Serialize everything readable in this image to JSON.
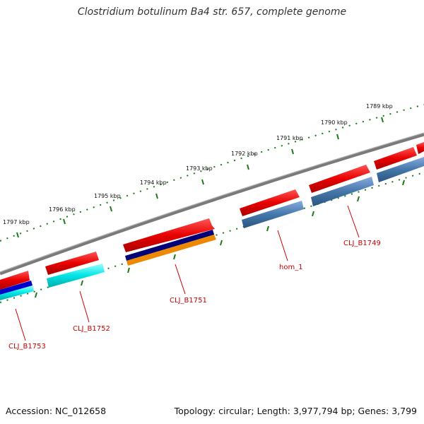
{
  "title": "Clostridium botulinum Ba4 str. 657, complete genome",
  "accession": "Accession: NC_012658",
  "topology": "Topology: circular; Length: 3,977,794 bp; Genes: 3,799",
  "colors": {
    "backbone": "#7a7a7a",
    "ticks": "#1a7a1a",
    "gene_red": "#e80000",
    "gene_cyan": "#00e5e5",
    "gene_blue": "#4477aa",
    "gene_navy": "#000077",
    "gene_orange": "#ee8800",
    "gene_darkblue": "#0000cc",
    "label_red": "#cc0000"
  },
  "scale_ticks": [
    {
      "label": "1797 kbp"
    },
    {
      "label": "1796 kbp"
    },
    {
      "label": "1795 kbp"
    },
    {
      "label": "1794 kbp"
    },
    {
      "label": "1793 kbp"
    },
    {
      "label": "1792 kbp"
    },
    {
      "label": "1791 kbp"
    },
    {
      "label": "1790 kbp"
    },
    {
      "label": "1789 kbp"
    }
  ],
  "gene_labels": [
    {
      "name": "CLJ_B1753"
    },
    {
      "name": "CLJ_B1752"
    },
    {
      "name": "CLJ_B1751"
    },
    {
      "name": "hom_1"
    },
    {
      "name": "CLJ_B1749"
    }
  ]
}
